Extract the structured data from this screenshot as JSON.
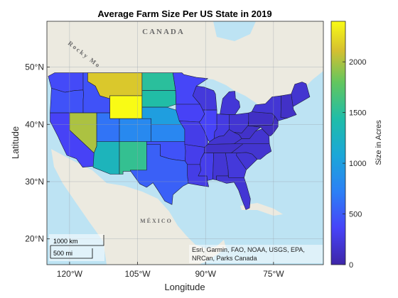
{
  "map": {
    "title": "Average Farm Size Per US State in 2019",
    "xlabel": "Longitude",
    "ylabel": "Latitude",
    "xticks": [
      {
        "lon": -120,
        "label": "120°W"
      },
      {
        "lon": -105,
        "label": "105°W"
      },
      {
        "lon": -90,
        "label": "90°W"
      },
      {
        "lon": -75,
        "label": "75°W"
      }
    ],
    "yticks": [
      {
        "lat": 20,
        "label": "20°N"
      },
      {
        "lat": 30,
        "label": "30°N"
      },
      {
        "lat": 40,
        "label": "40°N"
      },
      {
        "lat": 50,
        "label": "50°N"
      }
    ],
    "lon_range": [
      -125,
      -64
    ],
    "lat_range": [
      15.5,
      58
    ],
    "grid": true,
    "basemap_labels": {
      "canada": "CANADA",
      "mexico": "MÉXICO",
      "rocky": "Rocky Mo"
    },
    "attribution_line1": "Esri, Garmin, FAO, NOAA, USGS, EPA,",
    "attribution_line2": "NRCan, Parks Canada",
    "scalebar": {
      "km_label": "1000 km",
      "mi_label": "500 mi"
    }
  },
  "colorbar": {
    "label": "Size in Acres",
    "range": [
      0,
      2400
    ],
    "ticks": [
      {
        "value": 0,
        "label": "0"
      },
      {
        "value": 500,
        "label": "500"
      },
      {
        "value": 1000,
        "label": "1000"
      },
      {
        "value": 1500,
        "label": "1500"
      },
      {
        "value": 2000,
        "label": "2000"
      }
    ],
    "colormap": "parula"
  },
  "colors": {
    "ocean": "#bde3f3",
    "land": "#eceae0",
    "grid": "#9aa4ac"
  },
  "chart_data": {
    "type": "choropleth",
    "value_unit": "acres",
    "regions": [
      {
        "state": "WA",
        "value": 400
      },
      {
        "state": "OR",
        "value": 450
      },
      {
        "state": "CA",
        "value": 350
      },
      {
        "state": "ID",
        "value": 450
      },
      {
        "state": "NV",
        "value": 2000
      },
      {
        "state": "MT",
        "value": 2150
      },
      {
        "state": "WY",
        "value": 2400
      },
      {
        "state": "UT",
        "value": 650
      },
      {
        "state": "CO",
        "value": 800
      },
      {
        "state": "AZ",
        "value": 1300
      },
      {
        "state": "NM",
        "value": 1550
      },
      {
        "state": "ND",
        "value": 1500
      },
      {
        "state": "SD",
        "value": 1450
      },
      {
        "state": "NE",
        "value": 1000
      },
      {
        "state": "KS",
        "value": 780
      },
      {
        "state": "OK",
        "value": 450
      },
      {
        "state": "TX",
        "value": 530
      },
      {
        "state": "MN",
        "value": 380
      },
      {
        "state": "IA",
        "value": 350
      },
      {
        "state": "MO",
        "value": 290
      },
      {
        "state": "AR",
        "value": 300
      },
      {
        "state": "LA",
        "value": 280
      },
      {
        "state": "WI",
        "value": 230
      },
      {
        "state": "IL",
        "value": 360
      },
      {
        "state": "MI",
        "value": 210
      },
      {
        "state": "IN",
        "value": 260
      },
      {
        "state": "OH",
        "value": 190
      },
      {
        "state": "KY",
        "value": 180
      },
      {
        "state": "TN",
        "value": 150
      },
      {
        "state": "MS",
        "value": 300
      },
      {
        "state": "AL",
        "value": 200
      },
      {
        "state": "GA",
        "value": 230
      },
      {
        "state": "FL",
        "value": 200
      },
      {
        "state": "SC",
        "value": 200
      },
      {
        "state": "NC",
        "value": 180
      },
      {
        "state": "VA",
        "value": 180
      },
      {
        "state": "WV",
        "value": 150
      },
      {
        "state": "PA",
        "value": 130
      },
      {
        "state": "NY",
        "value": 200
      },
      {
        "state": "ME",
        "value": 180
      },
      {
        "state": "NEW-ENGLAND",
        "value": 140
      },
      {
        "state": "NJ-DE-MD",
        "value": 110
      }
    ]
  }
}
